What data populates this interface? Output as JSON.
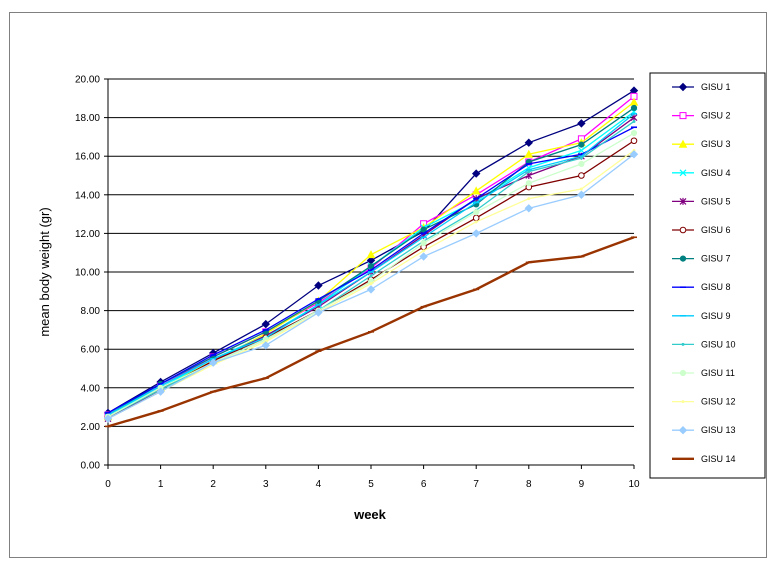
{
  "chart_data": {
    "type": "line",
    "xlabel": "week",
    "ylabel": "mean body weight (gr)",
    "x": [
      0,
      1,
      2,
      3,
      4,
      5,
      6,
      7,
      8,
      9,
      10
    ],
    "xlim": [
      0,
      10
    ],
    "ylim": [
      0,
      20
    ],
    "yticks": [
      "0.00",
      "2.00",
      "4.00",
      "6.00",
      "8.00",
      "10.00",
      "12.00",
      "14.00",
      "16.00",
      "18.00",
      "20.00"
    ],
    "xticks": [
      "0",
      "1",
      "2",
      "3",
      "4",
      "5",
      "6",
      "7",
      "8",
      "9",
      "10"
    ],
    "grid": "horizontal",
    "legend_position": "right",
    "series": [
      {
        "name": "GISU 1",
        "color": "#000080",
        "marker": "diamond",
        "values": [
          2.7,
          4.3,
          5.8,
          7.3,
          9.3,
          10.6,
          12.1,
          15.1,
          16.7,
          17.7,
          19.4
        ]
      },
      {
        "name": "GISU 2",
        "color": "#ff00ff",
        "marker": "square",
        "values": [
          2.6,
          4.1,
          5.6,
          6.9,
          8.4,
          10.2,
          12.5,
          14.0,
          15.7,
          16.9,
          19.1
        ]
      },
      {
        "name": "GISU 3",
        "color": "#ffff00",
        "marker": "triangle",
        "values": [
          2.5,
          4.0,
          5.4,
          6.8,
          8.5,
          10.9,
          12.3,
          14.2,
          16.1,
          16.7,
          18.8
        ]
      },
      {
        "name": "GISU 4",
        "color": "#00ffff",
        "marker": "x",
        "values": [
          2.6,
          4.0,
          5.5,
          6.7,
          8.3,
          10.3,
          12.3,
          13.7,
          15.4,
          16.3,
          18.3
        ]
      },
      {
        "name": "GISU 5",
        "color": "#800080",
        "marker": "star",
        "values": [
          2.4,
          3.9,
          5.4,
          6.7,
          8.2,
          10.0,
          11.9,
          13.8,
          15.0,
          16.0,
          18.0
        ]
      },
      {
        "name": "GISU 6",
        "color": "#800000",
        "marker": "circle",
        "values": [
          2.5,
          3.9,
          5.4,
          6.6,
          8.0,
          9.6,
          11.3,
          12.8,
          14.4,
          15.0,
          16.8
        ]
      },
      {
        "name": "GISU 7",
        "color": "#008080",
        "marker": "circle-filled",
        "values": [
          2.6,
          4.2,
          5.6,
          6.9,
          8.5,
          10.3,
          12.2,
          13.5,
          15.7,
          16.6,
          18.5
        ]
      },
      {
        "name": "GISU 8",
        "color": "#0000ff",
        "marker": "dash",
        "values": [
          2.7,
          4.2,
          5.7,
          7.0,
          8.6,
          10.1,
          12.0,
          13.8,
          15.6,
          16.1,
          17.5
        ]
      },
      {
        "name": "GISU 9",
        "color": "#00ccff",
        "marker": "dash",
        "values": [
          2.6,
          4.1,
          5.5,
          6.6,
          8.3,
          10.0,
          11.8,
          13.6,
          15.3,
          16.0,
          18.2
        ]
      },
      {
        "name": "GISU 10",
        "color": "#33cccc",
        "marker": "dot",
        "values": [
          2.5,
          3.9,
          5.3,
          6.5,
          8.0,
          9.8,
          11.6,
          13.2,
          15.2,
          15.9,
          17.8
        ]
      },
      {
        "name": "GISU 11",
        "color": "#ccffcc",
        "marker": "circle-filled",
        "values": [
          2.5,
          4.0,
          5.3,
          6.5,
          8.0,
          9.5,
          11.5,
          13.1,
          14.6,
          15.6,
          17.2
        ]
      },
      {
        "name": "GISU 12",
        "color": "#ffff99",
        "marker": "dot",
        "values": [
          2.4,
          3.8,
          5.2,
          6.4,
          7.9,
          9.4,
          11.1,
          12.6,
          13.8,
          14.3,
          16.3
        ]
      },
      {
        "name": "GISU 13",
        "color": "#99ccff",
        "marker": "diamond",
        "values": [
          2.4,
          3.8,
          5.3,
          6.2,
          7.9,
          9.1,
          10.8,
          12.0,
          13.3,
          14.0,
          16.1
        ]
      },
      {
        "name": "GISU 14",
        "color": "#993300",
        "marker": "dash",
        "values": [
          2.0,
          2.8,
          3.8,
          4.5,
          5.9,
          6.9,
          8.2,
          9.1,
          10.5,
          10.8,
          11.8
        ]
      }
    ]
  }
}
